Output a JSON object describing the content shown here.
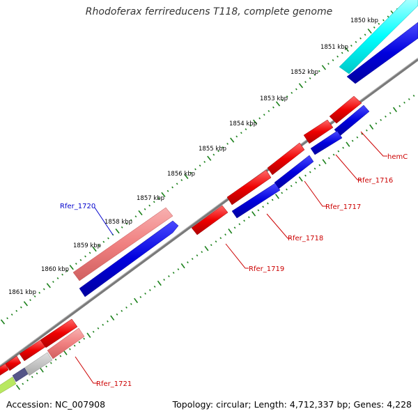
{
  "title": "Rhodoferax ferrireducens T118, complete genome",
  "footer": {
    "accession": "Accession: NC_007908",
    "summary": "Topology: circular; Length: 4,712,337 bp; Genes: 4,228"
  },
  "colors": {
    "forward_cds": "#ee0000",
    "reverse_cds": "#0000dd",
    "pseudo_cds": "#f08080",
    "rna": "#00ffff",
    "backbone": "#808080",
    "ticks": "#1a801a",
    "gene_label_red": "#cc0000",
    "gene_label_blue": "#0000cc"
  },
  "kbp_labels": [
    "1850 kbp",
    "1851 kbp",
    "1852 kbp",
    "1853 kbp",
    "1854 kbp",
    "1855 kbp",
    "1856 kbp",
    "1857 kbp",
    "1858 kbp",
    "1859 kbp",
    "1860 kbp",
    "1861 kbp"
  ],
  "gene_labels": [
    "hemC",
    "Rfer_1716",
    "Rfer_1717",
    "Rfer_1718",
    "Rfer_1719",
    "Rfer_1720",
    "Rfer_1721"
  ]
}
